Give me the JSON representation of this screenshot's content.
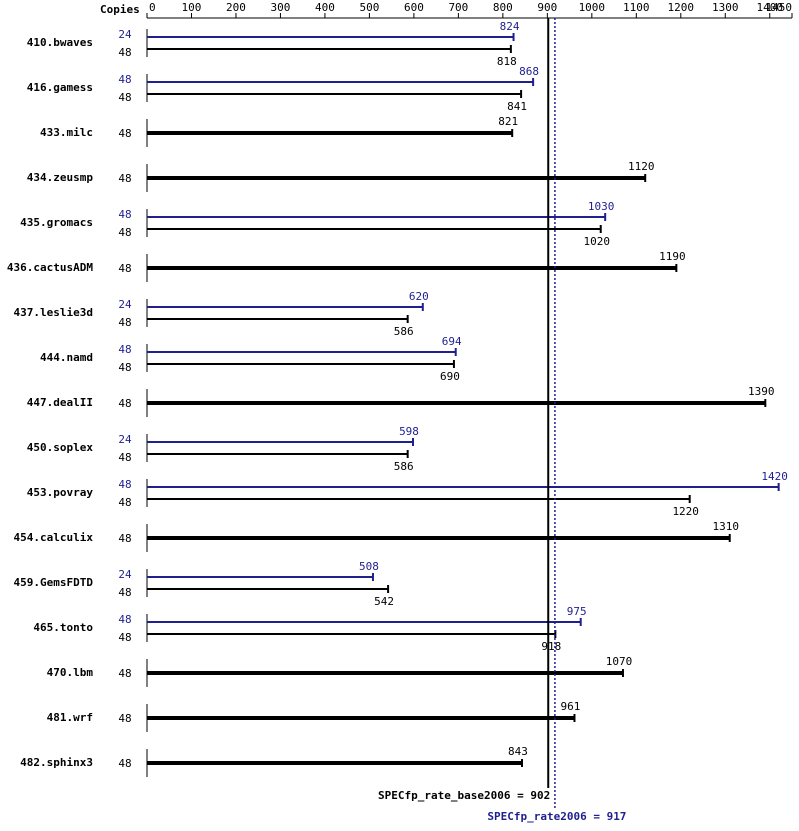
{
  "chart_data": {
    "type": "bar",
    "orientation": "horizontal",
    "x_axis_label": "Copies",
    "categories": [
      "410.bwaves",
      "416.gamess",
      "433.milc",
      "434.zeusmp",
      "435.gromacs",
      "436.cactusADM",
      "437.leslie3d",
      "444.namd",
      "447.dealII",
      "450.soplex",
      "453.povray",
      "454.calculix",
      "459.GemsFDTD",
      "465.tonto",
      "470.lbm",
      "481.wrf",
      "482.sphinx3"
    ],
    "series": [
      {
        "color": "#000000",
        "copies": [
          48,
          48,
          48,
          48,
          48,
          48,
          48,
          48,
          48,
          48,
          48,
          48,
          48,
          48,
          48,
          48,
          48
        ],
        "values": [
          818,
          841,
          821,
          1120,
          1020,
          1190,
          586,
          690,
          1390,
          586,
          1220,
          1310,
          542,
          918,
          1070,
          961,
          843
        ]
      },
      {
        "color": "#1f1f8f",
        "copies": [
          24,
          48,
          null,
          null,
          48,
          null,
          24,
          48,
          null,
          24,
          48,
          null,
          24,
          48,
          null,
          null,
          null
        ],
        "values": [
          824,
          868,
          null,
          null,
          1030,
          null,
          620,
          694,
          null,
          598,
          1420,
          null,
          508,
          975,
          null,
          null,
          null
        ]
      }
    ],
    "xlim": [
      0,
      1450
    ],
    "xticks": [
      0,
      100,
      200,
      300,
      400,
      500,
      600,
      700,
      800,
      900,
      1000,
      1100,
      1200,
      1300,
      1400,
      1450
    ],
    "reference_lines": [
      {
        "label": "SPECfp_rate_base2006 = 902",
        "value": 902,
        "color": "#000000",
        "style": "solid"
      },
      {
        "label": "SPECfp_rate2006 = 917",
        "value": 917,
        "color": "#1f1f8f",
        "style": "dotted"
      }
    ]
  }
}
